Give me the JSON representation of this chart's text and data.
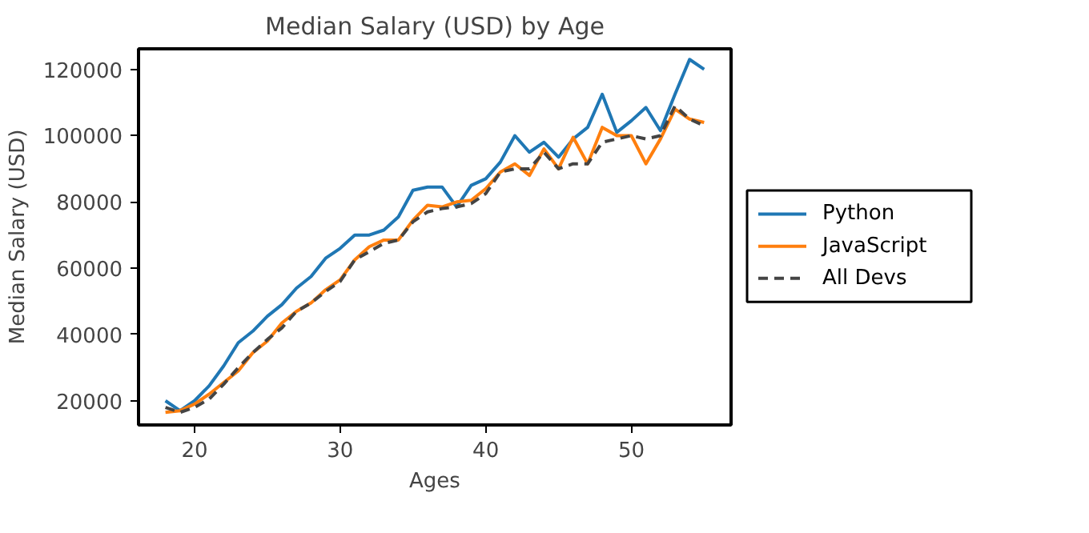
{
  "chart_data": {
    "type": "line",
    "title": "Median Salary (USD) by Age",
    "xlabel": "Ages",
    "ylabel": "Median Salary (USD)",
    "x": [
      18,
      19,
      20,
      21,
      22,
      23,
      24,
      25,
      26,
      27,
      28,
      29,
      30,
      31,
      32,
      33,
      34,
      35,
      36,
      37,
      38,
      39,
      40,
      41,
      42,
      43,
      44,
      45,
      46,
      47,
      48,
      49,
      50,
      51,
      52,
      53,
      54,
      55
    ],
    "series": [
      {
        "name": "Python",
        "color": "#1f77b4",
        "line_style": "solid",
        "values": [
          20000,
          17000,
          20000,
          24500,
          30500,
          37500,
          41000,
          45500,
          49000,
          54000,
          57500,
          63000,
          66000,
          70000,
          70000,
          71500,
          75500,
          83500,
          84500,
          84500,
          78500,
          85000,
          87000,
          92000,
          100000,
          95000,
          98000,
          93500,
          99000,
          102500,
          112500,
          101000,
          104500,
          108500,
          101500,
          112500,
          123000,
          120000
        ]
      },
      {
        "name": "JavaScript",
        "color": "#ff7f0e",
        "line_style": "solid",
        "values": [
          16500,
          17000,
          19000,
          22000,
          25500,
          29000,
          34500,
          38000,
          43500,
          47000,
          49500,
          53500,
          56500,
          62500,
          66500,
          68500,
          68500,
          74500,
          79000,
          78500,
          80000,
          80500,
          84000,
          89000,
          91500,
          88000,
          96000,
          90000,
          99500,
          91500,
          102500,
          100000,
          100000,
          91500,
          99000,
          108000,
          105000,
          104000
        ]
      },
      {
        "name": "All Devs",
        "color": "#444444",
        "line_style": "dashed",
        "values": [
          18000,
          16500,
          18000,
          20500,
          25000,
          30000,
          34500,
          38500,
          42000,
          47000,
          49500,
          53000,
          56000,
          62500,
          65000,
          67500,
          68500,
          74000,
          77000,
          78000,
          78500,
          79500,
          82500,
          89000,
          90000,
          90000,
          95000,
          90000,
          91500,
          91500,
          98000,
          99000,
          100000,
          99000,
          100000,
          109000,
          105000,
          103000
        ]
      }
    ],
    "xlim": [
      16.15,
      56.85
    ],
    "ylim": [
      12700,
      126200
    ],
    "xticks": [
      20,
      30,
      40,
      50
    ],
    "yticks": [
      20000,
      40000,
      60000,
      80000,
      100000,
      120000
    ],
    "grid": false,
    "legend": "right"
  }
}
